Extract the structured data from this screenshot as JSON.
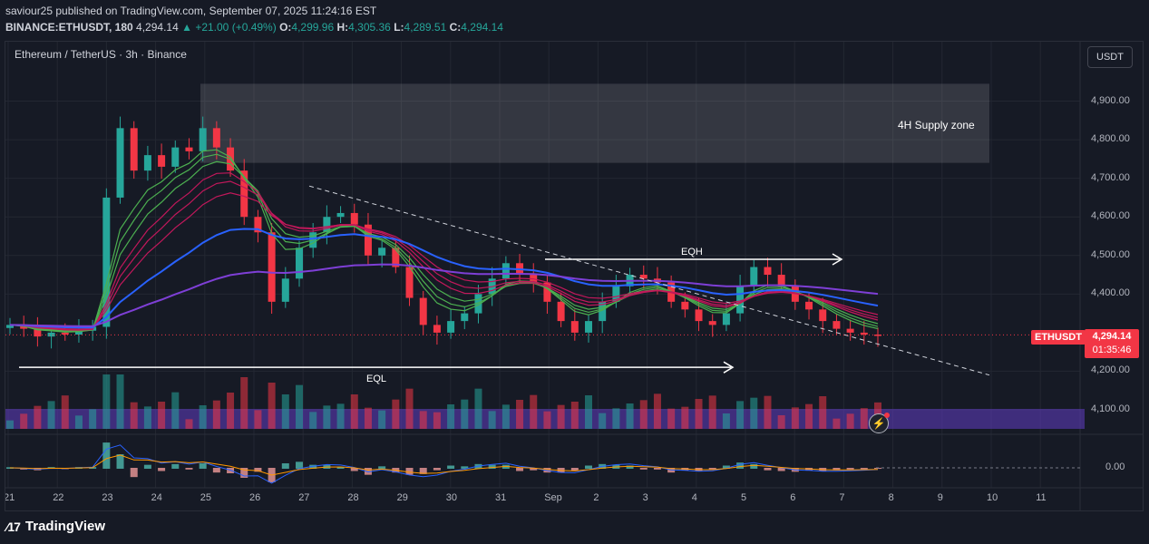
{
  "header": {
    "line1": "saviour25 published on TradingView.com, September 07, 2025 11:24:16 EST",
    "pair": "BINANCE:ETHUSDT, 180",
    "last": "4,294.14",
    "change": "▲ +21.00 (+0.49%)",
    "o_label": "O:",
    "o": "4,299.96",
    "h_label": "H:",
    "h": "4,305.36",
    "l_label": "L:",
    "l": "4,289.51",
    "c_label": "C:",
    "c": "4,294.14"
  },
  "symbol_label": "Ethereum / TetherUS · 3h · Binance",
  "currency_button": "USDT",
  "price_label": "ETHUSDT",
  "price_tag": {
    "price": "4,294.14",
    "countdown": "01:35:46"
  },
  "annotations": {
    "supply_zone": "4H Supply zone",
    "eqh": "EQH",
    "eql": "EQL"
  },
  "oscillator_zero": "0.00",
  "brand": "TradingView",
  "colors": {
    "up": "#26a69a",
    "down": "#f23645",
    "bg": "#161a25",
    "ema_blue": "#2962ff",
    "ema_purple": "#7e3fd6",
    "ribbon_green": "#4caf50",
    "ribbon_red": "#c2185b"
  },
  "chart_data": {
    "type": "line",
    "title": "Ethereum / TetherUS · 3h · Binance",
    "y_ticks": [
      "4,900.00",
      "4,800.00",
      "4,700.00",
      "4,600.00",
      "4,500.00",
      "4,400.00",
      "4,200.00",
      "4,100.00"
    ],
    "ylim": [
      4060,
      5000
    ],
    "x_ticks": [
      "21",
      "22",
      "23",
      "24",
      "25",
      "26",
      "27",
      "28",
      "29",
      "30",
      "31",
      "Sep",
      "2",
      "3",
      "4",
      "5",
      "6",
      "7",
      "8",
      "9",
      "10",
      "11"
    ],
    "grid": true,
    "series": [
      {
        "values": [
          4320,
          4310,
          4290,
          4300,
          4295,
          4305,
          4315,
          4650,
          4830,
          4720,
          4760,
          4730,
          4780,
          4770,
          4830,
          4780,
          4720,
          4600,
          4560,
          4380,
          4440,
          4520,
          4560,
          4600,
          4610,
          4580,
          4500,
          4520,
          4470,
          4390,
          4320,
          4300,
          4330,
          4350,
          4400,
          4440,
          4480,
          4450,
          4430,
          4380,
          4330,
          4300,
          4330,
          4380,
          4420,
          4450,
          4440,
          4430,
          4380,
          4360,
          4330,
          4320,
          4350,
          4420,
          4470,
          4450,
          4420,
          4380,
          4360,
          4330,
          4310,
          4300,
          4295,
          4294.14
        ]
      }
    ],
    "levels": {
      "supply_zone": [
        4740,
        4945
      ],
      "eqh": 4490,
      "eql": 4210,
      "current": 4294.14
    }
  }
}
